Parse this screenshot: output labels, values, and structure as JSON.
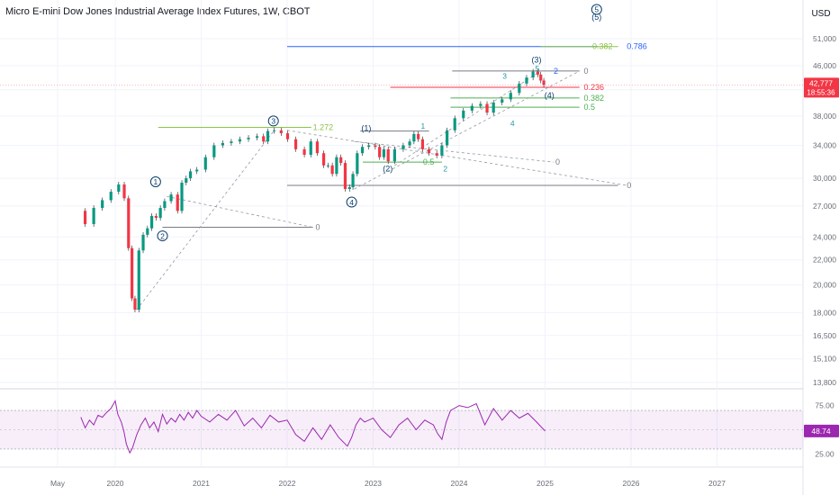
{
  "header": {
    "title": "Micro E-mini Dow Jones Industrial Average Index Futures, 1W, CBOT",
    "currency": "USD"
  },
  "price_tag": {
    "value": "42,777",
    "countdown": "18:55:36",
    "color": "#f23645"
  },
  "rsi_tag": {
    "value": "48.74",
    "color": "#9c27b0"
  },
  "chart_data": [
    {
      "type": "line",
      "name": "price",
      "x": [
        2019.6,
        2019.7,
        2019.8,
        2019.9,
        2020.0,
        2020.08,
        2020.13,
        2020.18,
        2020.21,
        2020.25,
        2020.3,
        2020.35,
        2020.4,
        2020.45,
        2020.5,
        2020.55,
        2020.6,
        2020.7,
        2020.75,
        2020.8,
        2020.85,
        2020.9,
        2021.0,
        2021.1,
        2021.2,
        2021.3,
        2021.4,
        2021.5,
        2021.6,
        2021.7,
        2021.75,
        2021.8,
        2021.9,
        2021.96,
        2022.05,
        2022.15,
        2022.25,
        2022.3,
        2022.4,
        2022.45,
        2022.5,
        2022.55,
        2022.6,
        2022.65,
        2022.7,
        2022.75,
        2022.78,
        2022.85,
        2022.9,
        2023.0,
        2023.05,
        2023.1,
        2023.15,
        2023.2,
        2023.3,
        2023.4,
        2023.45,
        2023.5,
        2023.55,
        2023.6,
        2023.7,
        2023.78,
        2023.82,
        2023.9,
        2024.0,
        2024.1,
        2024.2,
        2024.3,
        2024.35,
        2024.45,
        2024.55,
        2024.65,
        2024.75,
        2024.82,
        2024.9,
        2024.93,
        2024.97,
        2025.0
      ],
      "y": [
        26500,
        25200,
        26800,
        27600,
        28500,
        29300,
        27800,
        23000,
        19000,
        18200,
        22800,
        24200,
        24800,
        26000,
        25800,
        26800,
        27500,
        28200,
        26500,
        29500,
        30000,
        30800,
        31000,
        32500,
        34000,
        34300,
        34500,
        34800,
        35000,
        35200,
        34500,
        35900,
        36000,
        35600,
        34800,
        33500,
        32800,
        34500,
        33000,
        31500,
        31500,
        30500,
        32500,
        31800,
        28800,
        29000,
        30500,
        33000,
        33800,
        34000,
        33800,
        32500,
        33500,
        32000,
        33500,
        34000,
        34500,
        35500,
        34800,
        33500,
        33000,
        32700,
        34000,
        36000,
        37700,
        38800,
        39500,
        39800,
        38500,
        40000,
        40500,
        41500,
        43000,
        44000,
        45000,
        44500,
        43500,
        42777
      ],
      "ylim": [
        13800,
        54500
      ],
      "y_scale": "log",
      "y_ticks": [
        "51,000",
        "46,000",
        "42,000",
        "38,000",
        "34,000",
        "30,000",
        "27,000",
        "24,000",
        "22,000",
        "20,000",
        "18,000",
        "16,500",
        "15,100",
        "13,800"
      ],
      "y_tick_values": [
        51000,
        46000,
        42000,
        38000,
        34000,
        30000,
        27000,
        24000,
        22000,
        20000,
        18000,
        16500,
        15100,
        13800
      ],
      "x_ticks": [
        {
          "label": "May",
          "t": 2019.33
        },
        {
          "label": "2020",
          "t": 2020.0
        },
        {
          "label": "2021",
          "t": 2021.0
        },
        {
          "label": "2022",
          "t": 2022.0
        },
        {
          "label": "2023",
          "t": 2023.0
        },
        {
          "label": "2024",
          "t": 2024.0
        },
        {
          "label": "2025",
          "t": 2025.0
        },
        {
          "label": "2026",
          "t": 2026.0
        },
        {
          "label": "2027",
          "t": 2027.0
        }
      ],
      "annotations": {
        "wave_circled": [
          {
            "label": "1",
            "t": 2020.47,
            "v": 29600
          },
          {
            "label": "2",
            "t": 2020.55,
            "v": 24100
          },
          {
            "label": "3",
            "t": 2021.84,
            "v": 37300
          },
          {
            "label": "4",
            "t": 2022.75,
            "v": 27400
          },
          {
            "label": "5",
            "t": 2025.6,
            "v": 57000
          }
        ],
        "wave_paren": [
          {
            "label": "(1)",
            "t": 2022.92,
            "v": 35900
          },
          {
            "label": "(2)",
            "t": 2023.17,
            "v": 30800
          },
          {
            "label": "(3)",
            "t": 2024.9,
            "v": 46600
          },
          {
            "label": "(4)",
            "t": 2025.05,
            "v": 40700
          },
          {
            "label": "(5)",
            "t": 2025.6,
            "v": 54800
          }
        ],
        "wave_minor": [
          {
            "label": "1",
            "t": 2023.58,
            "v": 36200
          },
          {
            "label": "2",
            "t": 2023.84,
            "v": 30800
          },
          {
            "label": "3",
            "t": 2024.53,
            "v": 43800
          },
          {
            "label": "4",
            "t": 2024.62,
            "v": 36600
          },
          {
            "label": "5",
            "t": 2024.91,
            "v": 45100
          }
        ],
        "fib_labels": [
          {
            "label": "1.272",
            "t": 2022.3,
            "v": 36400,
            "color": "#8bc34a"
          },
          {
            "label": "0",
            "t": 2022.33,
            "v": 24900,
            "color": "#787b86"
          },
          {
            "label": "0.382",
            "t": 2025.55,
            "v": 49500,
            "color": "#8bc34a"
          },
          {
            "label": "0.786",
            "t": 2025.95,
            "v": 49500,
            "color": "#2962ff"
          },
          {
            "label": "0",
            "t": 2025.45,
            "v": 45100,
            "color": "#787b86"
          },
          {
            "label": "0.236",
            "t": 2025.45,
            "v": 42400,
            "color": "#f23645"
          },
          {
            "label": "0.382",
            "t": 2025.45,
            "v": 40700,
            "color": "#4caf50"
          },
          {
            "label": "0.5",
            "t": 2025.45,
            "v": 39300,
            "color": "#4caf50"
          },
          {
            "label": "0.5",
            "t": 2023.58,
            "v": 31900,
            "color": "#4caf50"
          },
          {
            "label": "2",
            "t": 2025.1,
            "v": 45100,
            "color": "#2962ff"
          },
          {
            "label": "0",
            "t": 2025.12,
            "v": 31900,
            "color": "#787b86"
          },
          {
            "label": "0",
            "t": 2025.95,
            "v": 29200,
            "color": "#787b86"
          }
        ]
      }
    },
    {
      "type": "line",
      "name": "RSI",
      "x": [
        2019.6,
        2019.65,
        2019.7,
        2019.75,
        2019.8,
        2019.85,
        2019.9,
        2019.95,
        2020.0,
        2020.03,
        2020.07,
        2020.1,
        2020.13,
        2020.17,
        2020.2,
        2020.25,
        2020.3,
        2020.35,
        2020.4,
        2020.45,
        2020.5,
        2020.55,
        2020.6,
        2020.65,
        2020.7,
        2020.75,
        2020.8,
        2020.85,
        2020.9,
        2020.95,
        2021.0,
        2021.1,
        2021.2,
        2021.3,
        2021.4,
        2021.5,
        2021.6,
        2021.7,
        2021.8,
        2021.9,
        2022.0,
        2022.1,
        2022.2,
        2022.3,
        2022.4,
        2022.5,
        2022.6,
        2022.7,
        2022.75,
        2022.8,
        2022.85,
        2022.9,
        2023.0,
        2023.1,
        2023.2,
        2023.3,
        2023.4,
        2023.5,
        2023.6,
        2023.7,
        2023.75,
        2023.8,
        2023.85,
        2023.9,
        2024.0,
        2024.1,
        2024.2,
        2024.3,
        2024.4,
        2024.5,
        2024.6,
        2024.7,
        2024.8,
        2024.9,
        2025.0
      ],
      "y": [
        63,
        52,
        60,
        55,
        65,
        63,
        68,
        72,
        80,
        66,
        58,
        49,
        35,
        26,
        31,
        45,
        55,
        62,
        52,
        58,
        48,
        66,
        56,
        62,
        58,
        66,
        60,
        68,
        62,
        70,
        64,
        58,
        66,
        60,
        70,
        54,
        62,
        52,
        65,
        58,
        60,
        45,
        38,
        52,
        40,
        55,
        42,
        33,
        42,
        55,
        62,
        58,
        62,
        50,
        42,
        55,
        62,
        50,
        60,
        55,
        46,
        40,
        58,
        70,
        75,
        73,
        77,
        55,
        72,
        60,
        70,
        62,
        67,
        58,
        48.74
      ],
      "ylim": [
        15,
        85
      ],
      "y_ticks": [
        "75.00",
        "25.00"
      ],
      "y_tick_values": [
        75,
        25
      ],
      "band": [
        30,
        70
      ]
    }
  ]
}
